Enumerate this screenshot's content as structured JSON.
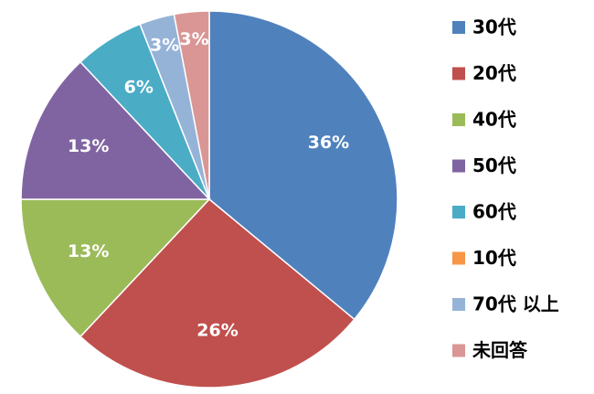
{
  "chart_data": {
    "type": "pie",
    "categories": [
      "30代",
      "20代",
      "40代",
      "50代",
      "60代",
      "10代",
      "70代 以上",
      "未回答"
    ],
    "values": [
      36,
      26,
      13,
      13,
      6,
      0,
      3,
      3
    ],
    "value_labels": [
      "36%",
      "26%",
      "13%",
      "13%",
      "6%",
      null,
      "3%",
      "3%"
    ],
    "colors": [
      "#4F81BD",
      "#C0504D",
      "#9BBB59",
      "#8064A2",
      "#4BACC6",
      "#F79646",
      "#95B3D7",
      "#D99694"
    ],
    "legend": "right"
  }
}
